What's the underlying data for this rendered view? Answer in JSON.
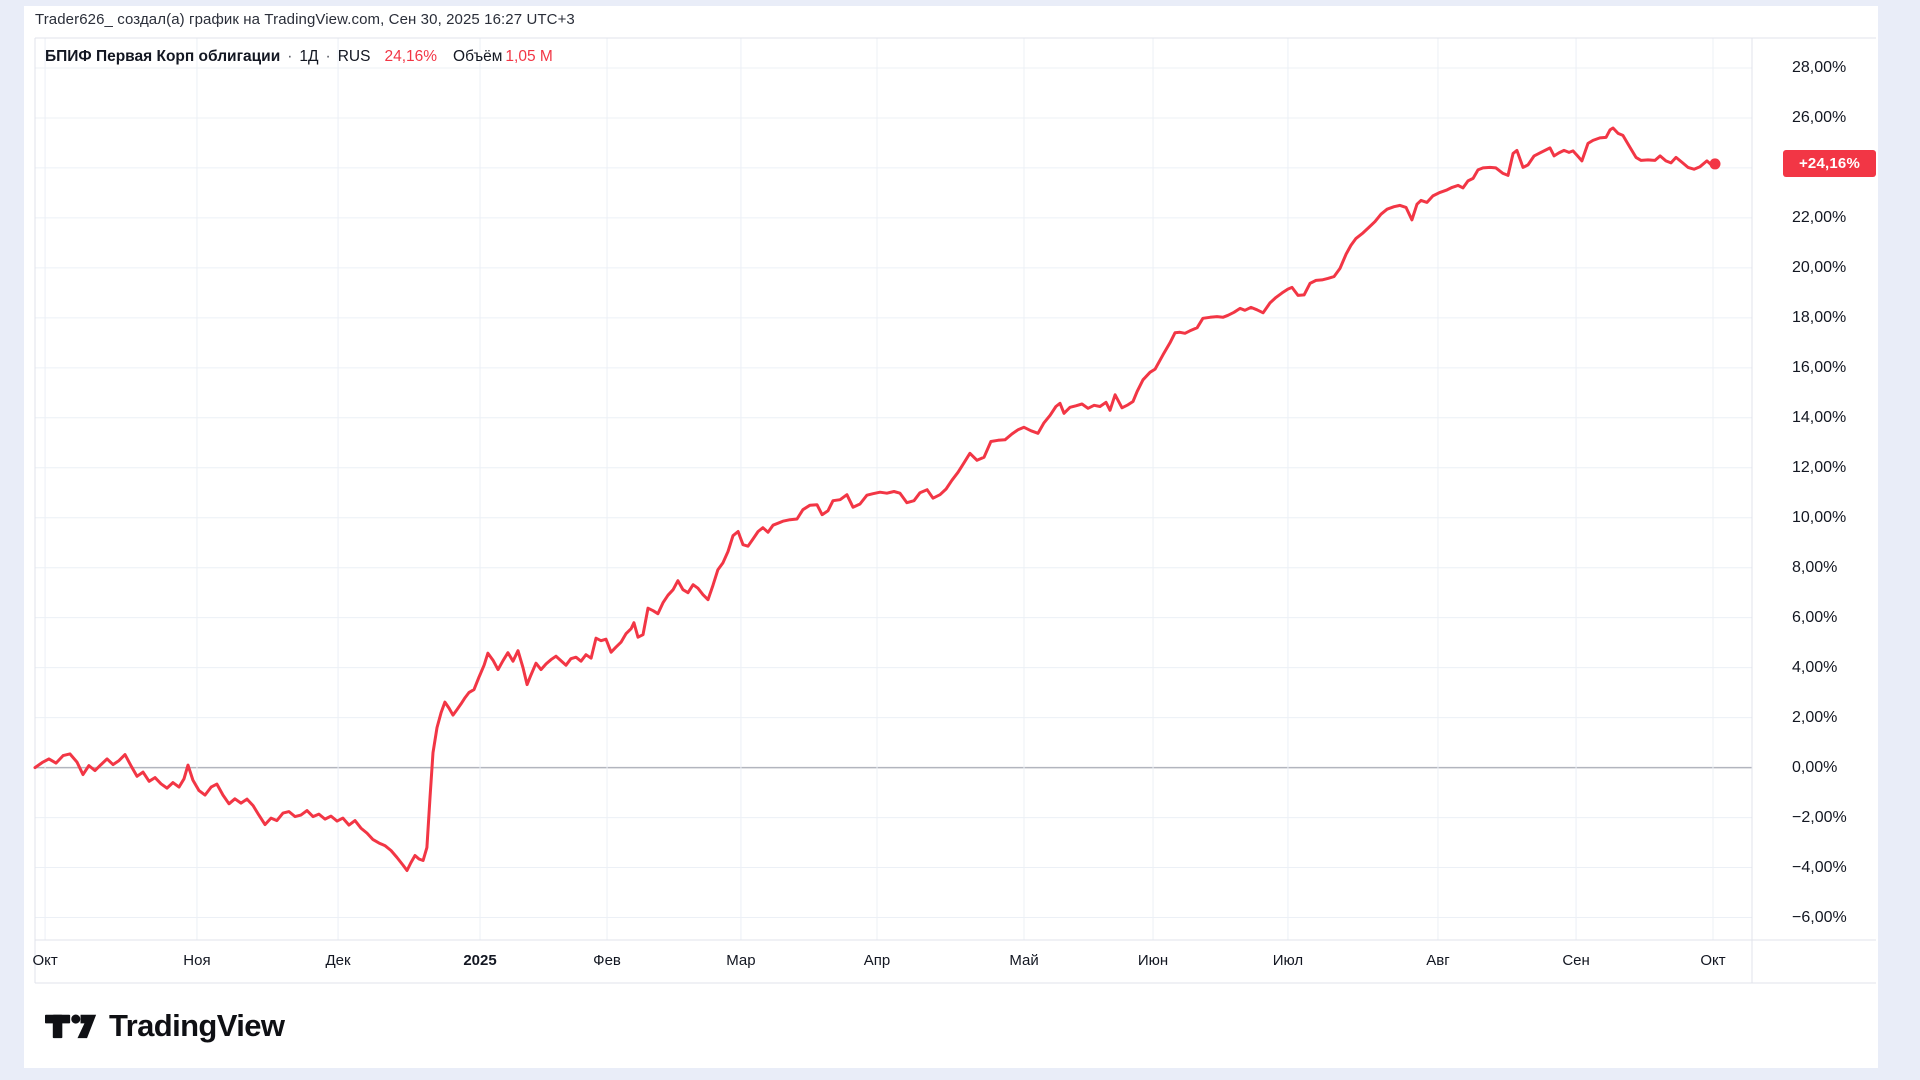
{
  "attribution": "Trader626_ создал(а) график на TradingView.com, Сен 30, 2025 16:27 UTC+3",
  "legend": {
    "symbol": "БПИФ Первая Корп облигации",
    "sep": "·",
    "interval": "1Д",
    "exchange": "RUS",
    "change": "24,16%",
    "volume_label": "Объём",
    "volume_value": "1,05 M"
  },
  "price_label": "+24,16%",
  "footer": {
    "brand": "TradingView"
  },
  "colors": {
    "accent": "#f23645",
    "text": "#131722",
    "grid": "#ecf0f6",
    "zero_line": "#b2b5be",
    "border": "#e0e3eb",
    "page_bg": "#e9edf8",
    "sheet_bg": "#ffffff"
  },
  "chart_data": {
    "type": "line",
    "title": "БПИФ Первая Корп облигации · 1Д · RUS",
    "unit": "%",
    "last_value": 24.16,
    "last_label": "+24,16%",
    "ylim": [
      -6.9,
      29.2
    ],
    "grid": true,
    "legend_position": "top-left",
    "y_ticks": [
      {
        "v": 28,
        "label": "28,00%"
      },
      {
        "v": 26,
        "label": "26,00%"
      },
      {
        "v": 24,
        "label": ""
      },
      {
        "v": 22,
        "label": "22,00%"
      },
      {
        "v": 20,
        "label": "20,00%"
      },
      {
        "v": 18,
        "label": "18,00%"
      },
      {
        "v": 16,
        "label": "16,00%"
      },
      {
        "v": 14,
        "label": "14,00%"
      },
      {
        "v": 12,
        "label": "12,00%"
      },
      {
        "v": 10,
        "label": "10,00%"
      },
      {
        "v": 8,
        "label": "8,00%"
      },
      {
        "v": 6,
        "label": "6,00%"
      },
      {
        "v": 4,
        "label": "4,00%"
      },
      {
        "v": 2,
        "label": "2,00%"
      },
      {
        "v": 0,
        "label": "0,00%"
      },
      {
        "v": -2,
        "label": "−2,00%"
      },
      {
        "v": -4,
        "label": "−4,00%"
      },
      {
        "v": -6,
        "label": "−6,00%"
      }
    ],
    "x_ticks": [
      {
        "label": "Окт",
        "t": 0.006
      },
      {
        "label": "Ноя",
        "t": 0.0964
      },
      {
        "label": "Дек",
        "t": 0.1804
      },
      {
        "label": "2025",
        "t": 0.2649,
        "bold": true
      },
      {
        "label": "Фев",
        "t": 0.3405
      },
      {
        "label": "Мар",
        "t": 0.4202
      },
      {
        "label": "Апр",
        "t": 0.5012
      },
      {
        "label": "Май",
        "t": 0.5887
      },
      {
        "label": "Июн",
        "t": 0.6655
      },
      {
        "label": "Июл",
        "t": 0.7458
      },
      {
        "label": "Авг",
        "t": 0.8351
      },
      {
        "label": "Сен",
        "t": 0.9173
      },
      {
        "label": "Окт",
        "t": 0.9988
      }
    ],
    "points": [
      [
        0.0,
        0.0
      ],
      [
        0.0042,
        0.2
      ],
      [
        0.0083,
        0.35
      ],
      [
        0.0125,
        0.18
      ],
      [
        0.0167,
        0.48
      ],
      [
        0.0208,
        0.55
      ],
      [
        0.025,
        0.22
      ],
      [
        0.0286,
        -0.28
      ],
      [
        0.0321,
        0.08
      ],
      [
        0.0357,
        -0.12
      ],
      [
        0.0393,
        0.12
      ],
      [
        0.0429,
        0.35
      ],
      [
        0.0464,
        0.12
      ],
      [
        0.05,
        0.28
      ],
      [
        0.0536,
        0.52
      ],
      [
        0.0571,
        0.08
      ],
      [
        0.0607,
        -0.35
      ],
      [
        0.0643,
        -0.18
      ],
      [
        0.0679,
        -0.55
      ],
      [
        0.0714,
        -0.4
      ],
      [
        0.075,
        -0.65
      ],
      [
        0.0786,
        -0.82
      ],
      [
        0.0821,
        -0.6
      ],
      [
        0.0857,
        -0.78
      ],
      [
        0.0887,
        -0.45
      ],
      [
        0.0911,
        0.1
      ],
      [
        0.094,
        -0.5
      ],
      [
        0.0976,
        -0.92
      ],
      [
        0.1012,
        -1.1
      ],
      [
        0.1048,
        -0.78
      ],
      [
        0.1083,
        -0.66
      ],
      [
        0.1119,
        -1.1
      ],
      [
        0.1155,
        -1.45
      ],
      [
        0.119,
        -1.25
      ],
      [
        0.1226,
        -1.42
      ],
      [
        0.1262,
        -1.26
      ],
      [
        0.1298,
        -1.52
      ],
      [
        0.1333,
        -1.9
      ],
      [
        0.1369,
        -2.28
      ],
      [
        0.1405,
        -2.02
      ],
      [
        0.144,
        -2.12
      ],
      [
        0.1476,
        -1.82
      ],
      [
        0.1512,
        -1.76
      ],
      [
        0.1548,
        -1.96
      ],
      [
        0.1583,
        -1.9
      ],
      [
        0.1619,
        -1.72
      ],
      [
        0.1655,
        -1.96
      ],
      [
        0.169,
        -1.86
      ],
      [
        0.1726,
        -2.06
      ],
      [
        0.1762,
        -1.94
      ],
      [
        0.1798,
        -2.14
      ],
      [
        0.1833,
        -2.02
      ],
      [
        0.1869,
        -2.3
      ],
      [
        0.1905,
        -2.12
      ],
      [
        0.194,
        -2.42
      ],
      [
        0.1976,
        -2.62
      ],
      [
        0.2012,
        -2.88
      ],
      [
        0.2048,
        -3.02
      ],
      [
        0.2083,
        -3.12
      ],
      [
        0.2119,
        -3.32
      ],
      [
        0.2155,
        -3.6
      ],
      [
        0.219,
        -3.9
      ],
      [
        0.2214,
        -4.12
      ],
      [
        0.2238,
        -3.8
      ],
      [
        0.2262,
        -3.52
      ],
      [
        0.2286,
        -3.66
      ],
      [
        0.231,
        -3.72
      ],
      [
        0.2333,
        -3.2
      ],
      [
        0.2351,
        -1.2
      ],
      [
        0.2369,
        0.6
      ],
      [
        0.2393,
        1.6
      ],
      [
        0.2417,
        2.2
      ],
      [
        0.244,
        2.62
      ],
      [
        0.2464,
        2.38
      ],
      [
        0.2488,
        2.1
      ],
      [
        0.2512,
        2.32
      ],
      [
        0.2536,
        2.55
      ],
      [
        0.256,
        2.8
      ],
      [
        0.2583,
        3.0
      ],
      [
        0.2613,
        3.12
      ],
      [
        0.2643,
        3.62
      ],
      [
        0.2673,
        4.1
      ],
      [
        0.2696,
        4.58
      ],
      [
        0.2726,
        4.3
      ],
      [
        0.2756,
        3.92
      ],
      [
        0.2786,
        4.28
      ],
      [
        0.2815,
        4.6
      ],
      [
        0.2845,
        4.26
      ],
      [
        0.2875,
        4.68
      ],
      [
        0.2905,
        4.0
      ],
      [
        0.2929,
        3.32
      ],
      [
        0.2952,
        3.7
      ],
      [
        0.2982,
        4.18
      ],
      [
        0.3012,
        3.92
      ],
      [
        0.3042,
        4.15
      ],
      [
        0.3071,
        4.32
      ],
      [
        0.3101,
        4.46
      ],
      [
        0.3131,
        4.28
      ],
      [
        0.3161,
        4.1
      ],
      [
        0.319,
        4.36
      ],
      [
        0.322,
        4.42
      ],
      [
        0.325,
        4.26
      ],
      [
        0.328,
        4.52
      ],
      [
        0.331,
        4.38
      ],
      [
        0.3339,
        5.18
      ],
      [
        0.3369,
        5.08
      ],
      [
        0.3399,
        5.14
      ],
      [
        0.3429,
        4.62
      ],
      [
        0.3458,
        4.82
      ],
      [
        0.3488,
        5.02
      ],
      [
        0.3518,
        5.36
      ],
      [
        0.3548,
        5.56
      ],
      [
        0.3565,
        5.8
      ],
      [
        0.3589,
        5.22
      ],
      [
        0.3619,
        5.32
      ],
      [
        0.3649,
        6.38
      ],
      [
        0.3679,
        6.28
      ],
      [
        0.3708,
        6.16
      ],
      [
        0.3738,
        6.6
      ],
      [
        0.3768,
        6.9
      ],
      [
        0.3798,
        7.12
      ],
      [
        0.3827,
        7.48
      ],
      [
        0.3857,
        7.12
      ],
      [
        0.3887,
        7.0
      ],
      [
        0.3917,
        7.32
      ],
      [
        0.3946,
        7.18
      ],
      [
        0.3976,
        6.92
      ],
      [
        0.4006,
        6.72
      ],
      [
        0.4036,
        7.3
      ],
      [
        0.4065,
        7.92
      ],
      [
        0.4095,
        8.2
      ],
      [
        0.4125,
        8.65
      ],
      [
        0.4155,
        9.28
      ],
      [
        0.4185,
        9.45
      ],
      [
        0.4214,
        8.92
      ],
      [
        0.4244,
        8.86
      ],
      [
        0.4274,
        9.15
      ],
      [
        0.4304,
        9.45
      ],
      [
        0.4333,
        9.6
      ],
      [
        0.4363,
        9.42
      ],
      [
        0.4393,
        9.7
      ],
      [
        0.4423,
        9.78
      ],
      [
        0.4452,
        9.86
      ],
      [
        0.4494,
        9.92
      ],
      [
        0.4536,
        9.95
      ],
      [
        0.4571,
        10.32
      ],
      [
        0.4613,
        10.5
      ],
      [
        0.4655,
        10.52
      ],
      [
        0.4685,
        10.12
      ],
      [
        0.472,
        10.28
      ],
      [
        0.475,
        10.68
      ],
      [
        0.4792,
        10.72
      ],
      [
        0.4833,
        10.92
      ],
      [
        0.4869,
        10.42
      ],
      [
        0.4911,
        10.55
      ],
      [
        0.4952,
        10.9
      ],
      [
        0.4988,
        10.96
      ],
      [
        0.503,
        11.02
      ],
      [
        0.5071,
        10.98
      ],
      [
        0.5113,
        11.05
      ],
      [
        0.5149,
        10.98
      ],
      [
        0.519,
        10.6
      ],
      [
        0.5232,
        10.68
      ],
      [
        0.5268,
        11.0
      ],
      [
        0.531,
        11.12
      ],
      [
        0.5345,
        10.78
      ],
      [
        0.5387,
        10.92
      ],
      [
        0.5423,
        11.15
      ],
      [
        0.5458,
        11.5
      ],
      [
        0.5494,
        11.82
      ],
      [
        0.553,
        12.2
      ],
      [
        0.5565,
        12.58
      ],
      [
        0.5607,
        12.3
      ],
      [
        0.5649,
        12.42
      ],
      [
        0.569,
        13.05
      ],
      [
        0.5732,
        13.1
      ],
      [
        0.5774,
        13.12
      ],
      [
        0.5815,
        13.35
      ],
      [
        0.5851,
        13.52
      ],
      [
        0.5887,
        13.62
      ],
      [
        0.5929,
        13.48
      ],
      [
        0.597,
        13.38
      ],
      [
        0.6006,
        13.8
      ],
      [
        0.6042,
        14.1
      ],
      [
        0.6077,
        14.45
      ],
      [
        0.6101,
        14.58
      ],
      [
        0.6125,
        14.18
      ],
      [
        0.6161,
        14.42
      ],
      [
        0.6196,
        14.48
      ],
      [
        0.6232,
        14.55
      ],
      [
        0.6268,
        14.38
      ],
      [
        0.6304,
        14.5
      ],
      [
        0.6339,
        14.45
      ],
      [
        0.6375,
        14.62
      ],
      [
        0.6399,
        14.3
      ],
      [
        0.6429,
        14.92
      ],
      [
        0.647,
        14.4
      ],
      [
        0.6506,
        14.52
      ],
      [
        0.6536,
        14.65
      ],
      [
        0.656,
        15.05
      ],
      [
        0.6595,
        15.52
      ],
      [
        0.6637,
        15.82
      ],
      [
        0.6667,
        15.95
      ],
      [
        0.6714,
        16.52
      ],
      [
        0.6756,
        17.0
      ],
      [
        0.6786,
        17.4
      ],
      [
        0.6815,
        17.42
      ],
      [
        0.6845,
        17.38
      ],
      [
        0.6875,
        17.48
      ],
      [
        0.6917,
        17.6
      ],
      [
        0.6952,
        17.98
      ],
      [
        0.6994,
        18.02
      ],
      [
        0.7036,
        18.05
      ],
      [
        0.7071,
        18.02
      ],
      [
        0.7101,
        18.1
      ],
      [
        0.7137,
        18.22
      ],
      [
        0.7173,
        18.38
      ],
      [
        0.7202,
        18.3
      ],
      [
        0.7238,
        18.42
      ],
      [
        0.7274,
        18.32
      ],
      [
        0.731,
        18.2
      ],
      [
        0.7351,
        18.6
      ],
      [
        0.7387,
        18.82
      ],
      [
        0.7423,
        19.0
      ],
      [
        0.7458,
        19.15
      ],
      [
        0.7482,
        19.22
      ],
      [
        0.7518,
        18.9
      ],
      [
        0.7554,
        18.92
      ],
      [
        0.7589,
        19.38
      ],
      [
        0.7625,
        19.5
      ],
      [
        0.7661,
        19.52
      ],
      [
        0.7696,
        19.58
      ],
      [
        0.7732,
        19.65
      ],
      [
        0.7768,
        19.98
      ],
      [
        0.7804,
        20.55
      ],
      [
        0.7833,
        20.9
      ],
      [
        0.7863,
        21.18
      ],
      [
        0.7905,
        21.4
      ],
      [
        0.794,
        21.62
      ],
      [
        0.7976,
        21.85
      ],
      [
        0.8012,
        22.15
      ],
      [
        0.8048,
        22.35
      ],
      [
        0.8089,
        22.45
      ],
      [
        0.8125,
        22.5
      ],
      [
        0.8161,
        22.42
      ],
      [
        0.8196,
        21.92
      ],
      [
        0.8226,
        22.55
      ],
      [
        0.825,
        22.7
      ],
      [
        0.8286,
        22.62
      ],
      [
        0.8321,
        22.88
      ],
      [
        0.8363,
        23.02
      ],
      [
        0.8405,
        23.12
      ],
      [
        0.8435,
        23.22
      ],
      [
        0.847,
        23.3
      ],
      [
        0.85,
        23.2
      ],
      [
        0.853,
        23.48
      ],
      [
        0.856,
        23.58
      ],
      [
        0.8589,
        23.92
      ],
      [
        0.8619,
        24.0
      ],
      [
        0.8661,
        24.02
      ],
      [
        0.8696,
        24.0
      ],
      [
        0.8738,
        23.78
      ],
      [
        0.8768,
        23.7
      ],
      [
        0.8798,
        24.58
      ],
      [
        0.8821,
        24.7
      ],
      [
        0.8857,
        24.02
      ],
      [
        0.8887,
        24.12
      ],
      [
        0.8923,
        24.48
      ],
      [
        0.8958,
        24.6
      ],
      [
        0.8994,
        24.72
      ],
      [
        0.9018,
        24.8
      ],
      [
        0.9042,
        24.48
      ],
      [
        0.9071,
        24.6
      ],
      [
        0.9101,
        24.7
      ],
      [
        0.9131,
        24.62
      ],
      [
        0.9155,
        24.68
      ],
      [
        0.9179,
        24.5
      ],
      [
        0.9208,
        24.28
      ],
      [
        0.9244,
        24.98
      ],
      [
        0.9274,
        25.1
      ],
      [
        0.9315,
        25.2
      ],
      [
        0.9351,
        25.22
      ],
      [
        0.9375,
        25.52
      ],
      [
        0.9393,
        25.6
      ],
      [
        0.9423,
        25.38
      ],
      [
        0.9452,
        25.3
      ],
      [
        0.9494,
        24.82
      ],
      [
        0.953,
        24.42
      ],
      [
        0.956,
        24.3
      ],
      [
        0.9601,
        24.32
      ],
      [
        0.9643,
        24.3
      ],
      [
        0.9673,
        24.48
      ],
      [
        0.9708,
        24.28
      ],
      [
        0.9738,
        24.2
      ],
      [
        0.9768,
        24.42
      ],
      [
        0.9804,
        24.22
      ],
      [
        0.9839,
        24.02
      ],
      [
        0.9875,
        23.95
      ],
      [
        0.9911,
        24.05
      ],
      [
        0.9952,
        24.28
      ],
      [
        0.9982,
        24.1
      ],
      [
        1.0,
        24.16
      ]
    ]
  }
}
